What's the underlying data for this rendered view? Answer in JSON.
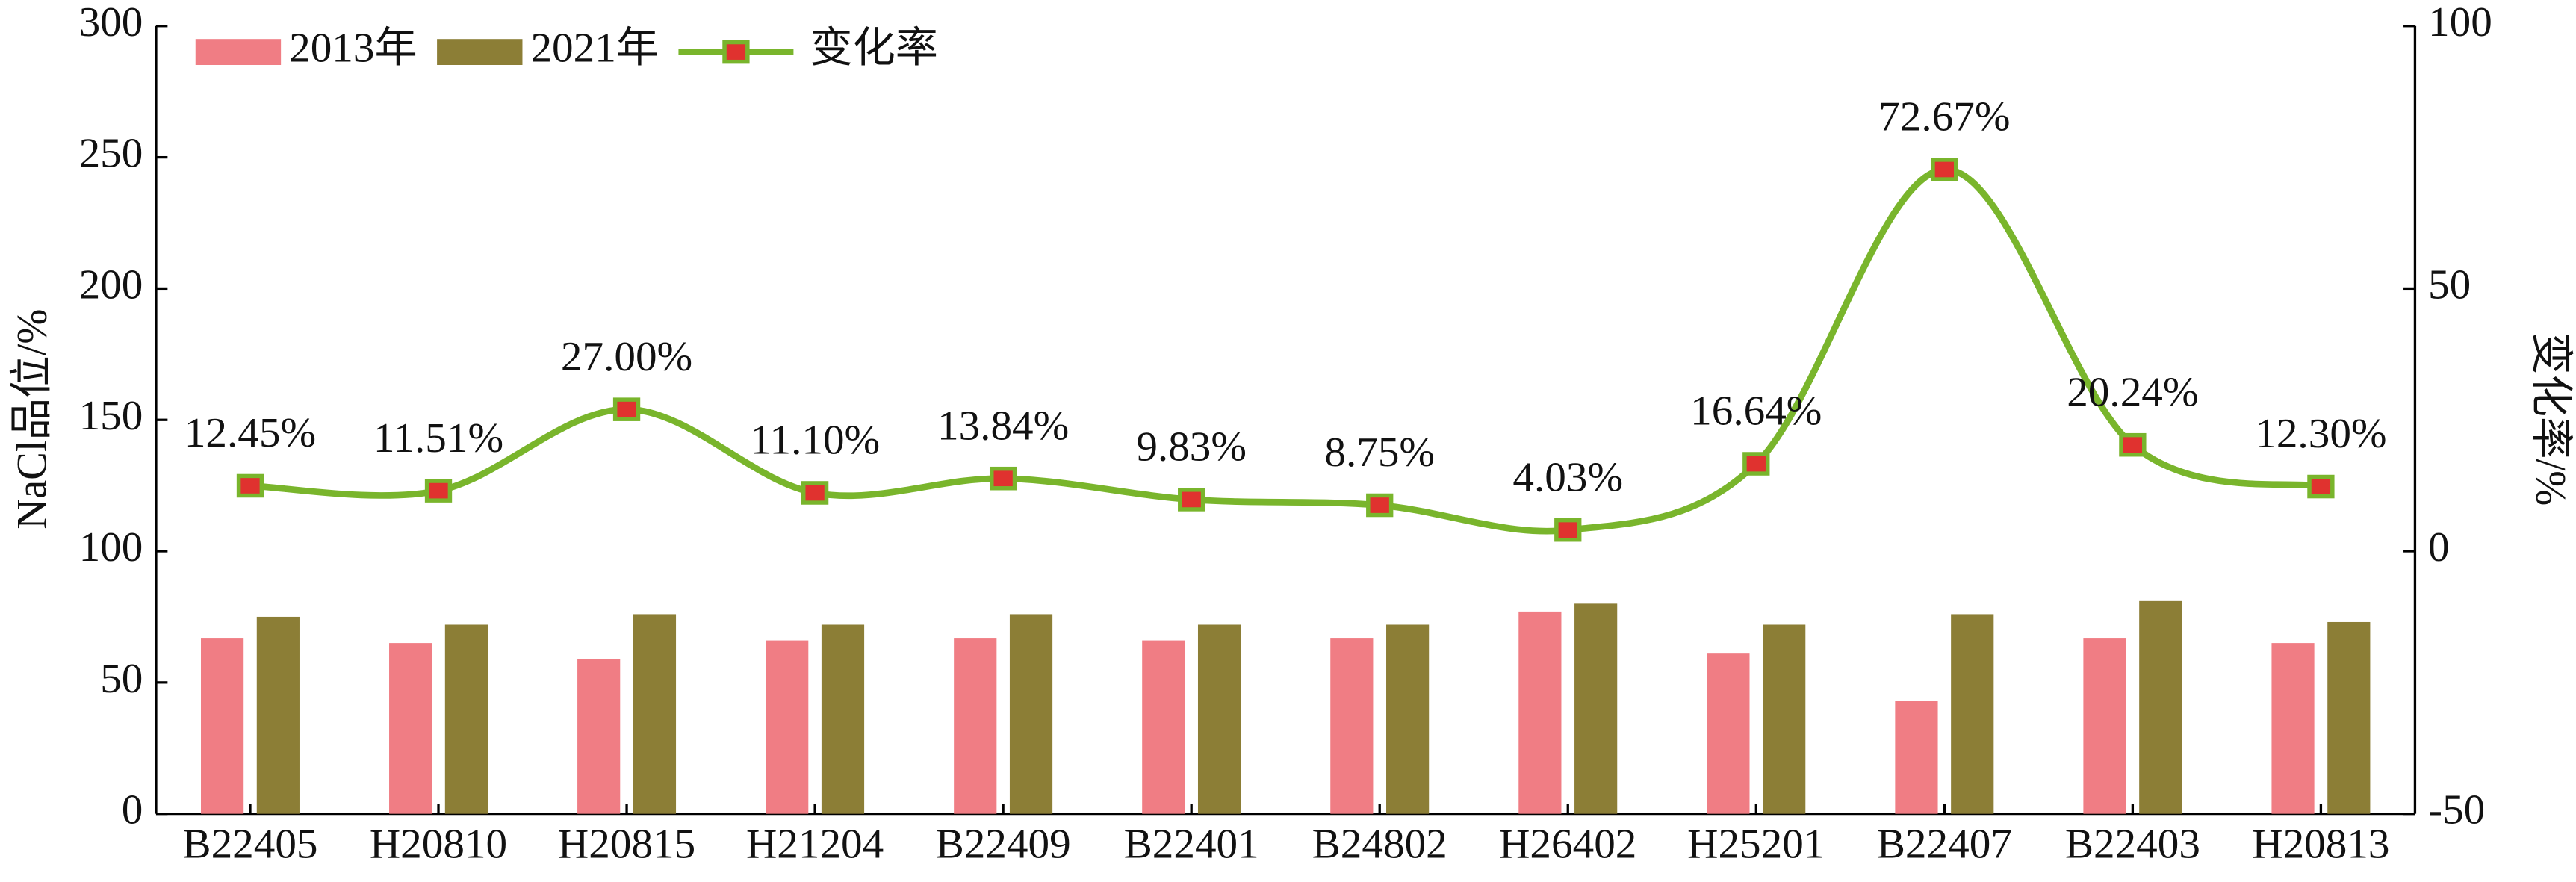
{
  "chart_data": {
    "type": "bar",
    "categories": [
      "B22405",
      "H20810",
      "H20815",
      "H21204",
      "B22409",
      "B22401",
      "B24802",
      "H26402",
      "H25201",
      "B22407",
      "B22403",
      "H20813"
    ],
    "series": [
      {
        "name": "2013年",
        "color": "#f07d84",
        "values": [
          67,
          65,
          59,
          66,
          67,
          66,
          67,
          77,
          61,
          43,
          67,
          65
        ]
      },
      {
        "name": "2021年",
        "color": "#8c7e36",
        "values": [
          75,
          72,
          76,
          72,
          76,
          72,
          72,
          80,
          72,
          76,
          81,
          73
        ]
      },
      {
        "name": "变化率",
        "type": "line",
        "axis": "y2",
        "color": "#79b52c",
        "marker_color": "#e0322f",
        "values": [
          12.45,
          11.51,
          27.0,
          11.1,
          13.84,
          9.83,
          8.75,
          4.03,
          16.64,
          72.67,
          20.24,
          12.3
        ],
        "value_labels": [
          "12.45%",
          "11.51%",
          "27.00%",
          "11.10%",
          "13.84%",
          "9.83%",
          "8.75%",
          "4.03%",
          "16.64%",
          "72.67%",
          "20.24%",
          "12.30%"
        ]
      }
    ],
    "ylabel": "NaCl品位/%",
    "y2label": "变化率/%",
    "ylim": [
      0,
      300
    ],
    "yticks": [
      0,
      50,
      100,
      150,
      200,
      250,
      300
    ],
    "y2lim": [
      -50,
      100
    ],
    "y2ticks": [
      -50,
      0,
      50,
      100
    ],
    "grid": false,
    "legend": "top-left"
  }
}
